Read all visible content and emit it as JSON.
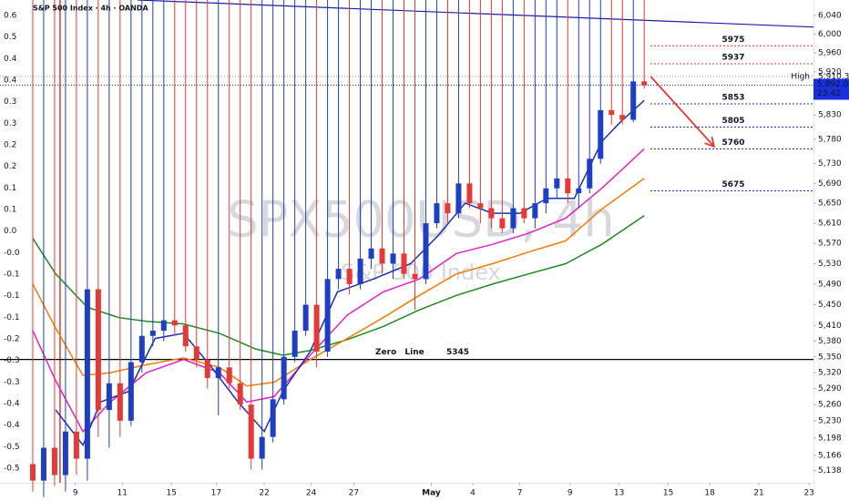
{
  "chart_data": {
    "type": "candlestick",
    "title": "S&P 500 Index · 4h · OANDA",
    "watermark": "SPX500USD, 4h",
    "watermark_subtitle": "S&P 500 Index",
    "log_scale": true,
    "up_color": "#1e3fc4",
    "down_color": "#e53935",
    "x": [
      0,
      1,
      2,
      3,
      4,
      5,
      6,
      7,
      8,
      9,
      10,
      11,
      12,
      13,
      14,
      15,
      16,
      17,
      18,
      19,
      20,
      21,
      22,
      23,
      24,
      25,
      26,
      27,
      28,
      29,
      30,
      31,
      32,
      33,
      34,
      35,
      36,
      37,
      38,
      39,
      40,
      41,
      42,
      43,
      44,
      45,
      46,
      47,
      48,
      49,
      50,
      51,
      52,
      53,
      54,
      55,
      56
    ],
    "open": [
      5150,
      5120,
      5180,
      5130,
      5210,
      5160,
      5480,
      5250,
      5300,
      5230,
      5340,
      5390,
      5400,
      5420,
      5410,
      5370,
      5345,
      5310,
      5330,
      5300,
      5260,
      5160,
      5200,
      5270,
      5350,
      5400,
      5450,
      5360,
      5500,
      5520,
      5490,
      5540,
      5560,
      5530,
      5550,
      5510,
      5500,
      5610,
      5650,
      5630,
      5690,
      5650,
      5640,
      5620,
      5600,
      5640,
      5620,
      5650,
      5680,
      5700,
      5670,
      5680,
      5740,
      5840,
      5830,
      5820,
      5900
    ],
    "high": {
      "label": "High",
      "value": 5910.3,
      "value_label": "5,910.3"
    },
    "low": [
      5100,
      5090,
      5110,
      5100,
      5130,
      5120,
      5200,
      5180,
      5200,
      5220,
      5320,
      5370,
      5380,
      5390,
      5360,
      5330,
      5290,
      5240,
      5290,
      5250,
      5140,
      5140,
      5190,
      5260,
      5340,
      5390,
      5330,
      5350,
      5480,
      5470,
      5480,
      5520,
      5510,
      5500,
      5500,
      5440,
      5490,
      5600,
      5610,
      5620,
      5640,
      5610,
      5600,
      5590,
      5590,
      5610,
      5600,
      5630,
      5660,
      5650,
      5640,
      5670,
      5730,
      5810,
      5810,
      5815,
      5885
    ],
    "close": [
      5120,
      5180,
      5130,
      5210,
      5160,
      5480,
      5250,
      5300,
      5230,
      5340,
      5390,
      5400,
      5420,
      5410,
      5370,
      5345,
      5310,
      5330,
      5300,
      5260,
      5160,
      5200,
      5270,
      5350,
      5400,
      5450,
      5360,
      5500,
      5520,
      5490,
      5540,
      5560,
      5530,
      5550,
      5510,
      5500,
      5610,
      5650,
      5630,
      5690,
      5650,
      5640,
      5620,
      5600,
      5640,
      5620,
      5650,
      5680,
      5700,
      5670,
      5680,
      5740,
      5840,
      5830,
      5820,
      5900,
      5892
    ],
    "moving_averages": [
      {
        "color": "#1e8a1e",
        "x": [
          0,
          2.1,
          5,
          7.9,
          10.4,
          13.8,
          17.1,
          20.4,
          22.9,
          25.4,
          28.8,
          32.1,
          35.4,
          38.8,
          42.1,
          45.4,
          48.8,
          52.1,
          56
        ],
        "values": [
          5580,
          5510,
          5445,
          5425,
          5418,
          5413,
          5395,
          5365,
          5353,
          5362,
          5383,
          5408,
          5440,
          5468,
          5490,
          5510,
          5530,
          5568,
          5625
        ]
      },
      {
        "color": "#f57c00",
        "x": [
          0,
          2.1,
          4.6,
          7.1,
          10.4,
          13.8,
          17.1,
          19.6,
          22.1,
          25.4,
          28.8,
          32.1,
          35.4,
          38.8,
          42.1,
          45.4,
          48.8,
          52.1,
          56
        ],
        "values": [
          5490,
          5405,
          5315,
          5320,
          5335,
          5348,
          5330,
          5295,
          5302,
          5345,
          5385,
          5425,
          5468,
          5510,
          5530,
          5553,
          5575,
          5638,
          5700
        ]
      },
      {
        "color": "#e91ec8",
        "x": [
          0,
          2.1,
          4.6,
          7.1,
          10.4,
          13.8,
          17.1,
          19.6,
          22.1,
          25.4,
          28.8,
          32.1,
          35.4,
          38.8,
          42.1,
          45.4,
          48.8,
          52.1,
          56
        ],
        "values": [
          5400,
          5305,
          5210,
          5265,
          5320,
          5345,
          5320,
          5265,
          5275,
          5353,
          5430,
          5475,
          5500,
          5550,
          5568,
          5590,
          5620,
          5680,
          5760
        ]
      },
      {
        "color": "#1a2fb8",
        "x": [
          2.1,
          4.6,
          6.2,
          8.8,
          11.2,
          13.8,
          16.2,
          18.8,
          21.2,
          22.9,
          25.4,
          27.9,
          31.2,
          34.6,
          37.1,
          39.6,
          42.1,
          44.6,
          47.1,
          49.6,
          52.1,
          53.8,
          56
        ],
        "values": [
          5250,
          5185,
          5265,
          5285,
          5385,
          5395,
          5335,
          5265,
          5210,
          5285,
          5360,
          5475,
          5500,
          5530,
          5585,
          5650,
          5630,
          5630,
          5660,
          5660,
          5775,
          5815,
          5860
        ]
      }
    ],
    "levels": [
      {
        "value": 5975,
        "color": "#e53935"
      },
      {
        "value": 5937,
        "color": "#e53935"
      },
      {
        "value": 5853,
        "color": "#1a2fb8"
      },
      {
        "value": 5805,
        "color": "#1a2fb8"
      },
      {
        "value": 5760,
        "color": "#1a2fb8"
      },
      {
        "value": 5675,
        "color": "#1a2fb8"
      }
    ],
    "zero_line": {
      "label": "Zero Line",
      "value": 5345
    },
    "trendline": {
      "x": [
        9.6,
        71.5
      ],
      "values": [
        6073,
        6015
      ],
      "color": "#1a1fa8"
    },
    "arrow": {
      "x": [
        56.6,
        62.4
      ],
      "values": [
        5910,
        5765
      ],
      "color": "#e53935"
    },
    "marker_line": {
      "x": 2.5,
      "color": "#e53935"
    },
    "last": {
      "value": 5892,
      "value_label": "5,892.0",
      "countdown": "23:42",
      "color": "#1a2fe0"
    },
    "xlim": [
      -3,
      71.5
    ],
    "xticks": [
      {
        "value": 3.9,
        "label": "9"
      },
      {
        "value": 8.2,
        "label": "11"
      },
      {
        "value": 12.7,
        "label": "15"
      },
      {
        "value": 16.8,
        "label": "17"
      },
      {
        "value": 21.2,
        "label": "22"
      },
      {
        "value": 25.5,
        "label": "24"
      },
      {
        "value": 29.4,
        "label": "27"
      },
      {
        "value": 36.5,
        "label": "May"
      },
      {
        "value": 40.3,
        "label": "4"
      },
      {
        "value": 44.6,
        "label": "7"
      },
      {
        "value": 49.2,
        "label": "9"
      },
      {
        "value": 53.7,
        "label": "13"
      },
      {
        "value": 58.2,
        "label": "15"
      },
      {
        "value": 62,
        "label": "18"
      },
      {
        "value": 66.5,
        "label": "21"
      },
      {
        "value": 71.1,
        "label": "23"
      }
    ],
    "ylim": [
      5116,
      6073
    ],
    "yticks": [
      {
        "value": 6040,
        "label": "6,040"
      },
      {
        "value": 6000,
        "label": "6,000"
      },
      {
        "value": 5960,
        "label": "5,960"
      },
      {
        "value": 5920,
        "label": "5,920"
      },
      {
        "value": 5830,
        "label": "5,830"
      },
      {
        "value": 5780,
        "label": "5,780"
      },
      {
        "value": 5730,
        "label": "5,730"
      },
      {
        "value": 5690,
        "label": "5,690"
      },
      {
        "value": 5650,
        "label": "5,650"
      },
      {
        "value": 5610,
        "label": "5,610"
      },
      {
        "value": 5570,
        "label": "5,570"
      },
      {
        "value": 5530,
        "label": "5,530"
      },
      {
        "value": 5490,
        "label": "5,490"
      },
      {
        "value": 5450,
        "label": "5,450"
      },
      {
        "value": 5410,
        "label": "5,410"
      },
      {
        "value": 5380,
        "label": "5,380"
      },
      {
        "value": 5350,
        "label": "5,350"
      },
      {
        "value": 5320,
        "label": "5,320"
      },
      {
        "value": 5290,
        "label": "5,290"
      },
      {
        "value": 5260,
        "label": "5,260"
      },
      {
        "value": 5230,
        "label": "5,230"
      },
      {
        "value": 5198,
        "label": "5,198"
      },
      {
        "value": 5166,
        "label": "5,166"
      },
      {
        "value": 5138,
        "label": "5,138"
      }
    ],
    "left_scale_labels": [
      "0.6",
      "0.5",
      "0.4",
      "0.4",
      "0.3",
      "0.3",
      "0.2",
      "0.2",
      "0.1",
      "0.1",
      "0.0",
      "-0.0",
      "-0.1",
      "-0.1",
      "-0.1",
      "-0.2",
      "-0.3",
      "-0.3",
      "-0.4",
      "-0.4",
      "-0.5",
      "-0.5"
    ]
  }
}
